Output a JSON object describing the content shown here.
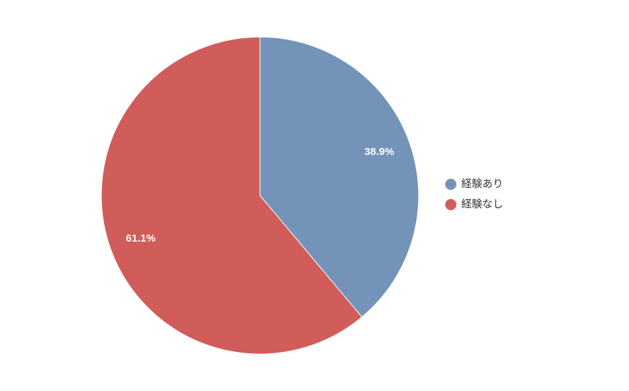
{
  "chart_data": {
    "type": "pie",
    "categories": [
      "経験あり",
      "経験なし"
    ],
    "values": [
      38.9,
      61.1
    ],
    "value_labels": [
      "38.9%",
      "61.1%"
    ],
    "colors": [
      "#7393b9",
      "#d15d5b"
    ],
    "legend": "right"
  }
}
